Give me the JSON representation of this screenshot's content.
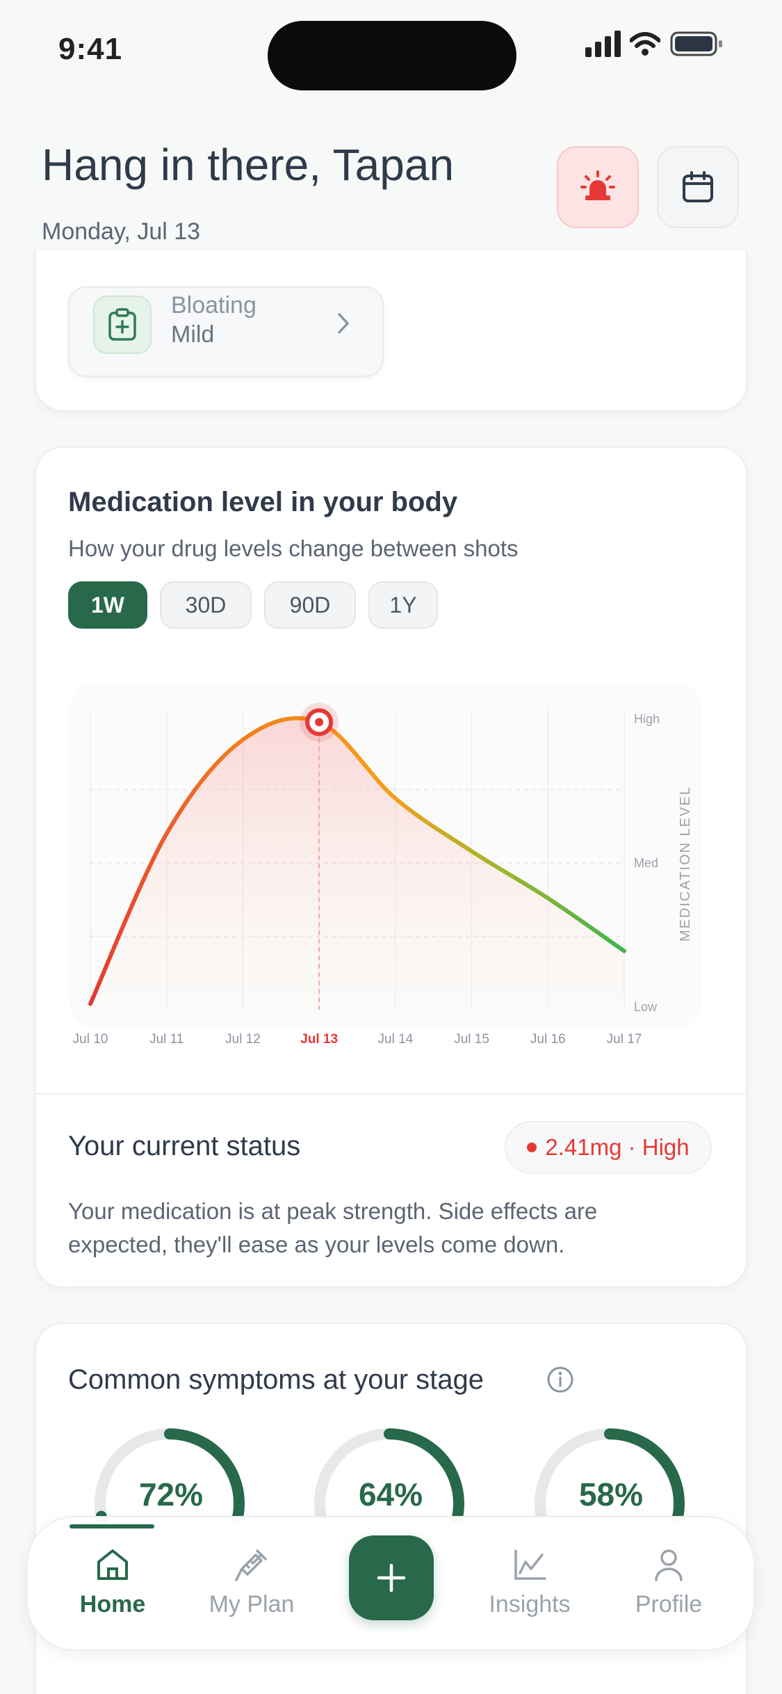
{
  "status_bar": {
    "time": "9:41"
  },
  "header": {
    "greeting": "Hang in there, Tapan",
    "date": "Monday, Jul 13"
  },
  "symptom_chip": {
    "name": "Bloating",
    "severity": "Mild"
  },
  "medication_card": {
    "title": "Medication level in your body",
    "subtitle": "How your drug levels change between shots",
    "ranges": [
      {
        "label": "1W",
        "active": true
      },
      {
        "label": "30D",
        "active": false
      },
      {
        "label": "90D",
        "active": false
      },
      {
        "label": "1Y",
        "active": false
      }
    ]
  },
  "chart_data": {
    "type": "area",
    "x": [
      "Jul 10",
      "Jul 11",
      "Jul 12",
      "Jul 13",
      "Jul 14",
      "Jul 15",
      "Jul 16",
      "Jul 17"
    ],
    "highlight_x": "Jul 13",
    "ylabel": "MEDICATION LEVEL",
    "y_ticks": [
      "High",
      "Med",
      "Low"
    ],
    "values": [
      0.02,
      0.6,
      0.92,
      0.98,
      0.72,
      0.54,
      0.38,
      0.2
    ],
    "colors": {
      "high": "#e53935",
      "mid": "#f59e1b",
      "low": "#3bb54a",
      "peak": "#e53935"
    },
    "grid": true
  },
  "status": {
    "title": "Your current status",
    "badge": "2.41mg · High",
    "text": "Your medication is at peak strength. Side effects are expected, they'll ease as your levels come down."
  },
  "symptoms": {
    "title": "Common symptoms at your stage",
    "rings": [
      {
        "percent": 72,
        "label": "72%"
      },
      {
        "percent": 64,
        "label": "64%"
      },
      {
        "percent": 58,
        "label": "58%"
      }
    ]
  },
  "nav": {
    "items": [
      {
        "label": "Home",
        "icon": "home-icon",
        "active": true
      },
      {
        "label": "My Plan",
        "icon": "syringe-icon",
        "active": false
      },
      {
        "label": "Insights",
        "icon": "chart-line-icon",
        "active": false
      },
      {
        "label": "Profile",
        "icon": "person-icon",
        "active": false
      }
    ],
    "add": "add-icon"
  },
  "colors": {
    "accent": "#27694a",
    "alert": "#e53935"
  }
}
